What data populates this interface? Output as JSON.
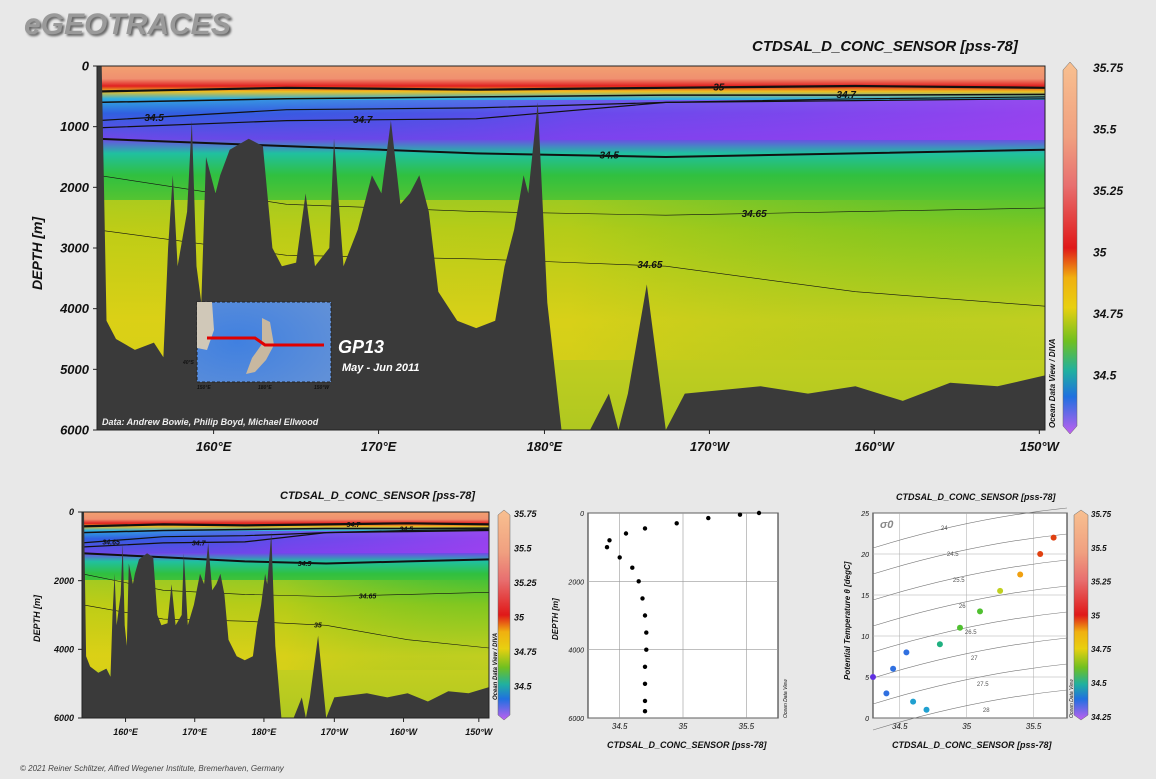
{
  "brand": "eGEOTRACES",
  "copyright": "© 2021 Reiner Schlitzer, Alfred Wegener Institute, Bremerhaven, Germany",
  "colors": {
    "bottom": "#3a3a3a",
    "background": "#e8e8e8"
  },
  "chart_data": [
    {
      "type": "heatmap",
      "title": "CTDSAL_D_CONC_SENSOR [pss-78]",
      "ylabel": "DEPTH [m]",
      "xlabel": "",
      "x_ticks": [
        "160°E",
        "170°E",
        "180°E",
        "170°W",
        "160°W",
        "150°W"
      ],
      "y_ticks": [
        "0",
        "1000",
        "2000",
        "3000",
        "4000",
        "5000",
        "6000"
      ],
      "ylim": [
        6000,
        0
      ],
      "xlim_lon": [
        153,
        150.5
      ],
      "colorbar": {
        "ticks": [
          "35.75",
          "35.5",
          "35.25",
          "35",
          "34.75",
          "34.5"
        ],
        "range": [
          34.3,
          35.8
        ]
      },
      "contours": [
        "35",
        "34.5",
        "34.65",
        "34.7",
        "34.5",
        "34.65",
        "34.7"
      ],
      "credit": "Data: Andrew Bowie, Philip Boyd, Michael Ellwood",
      "section": "GP13",
      "period": "May - Jun 2011",
      "vertical_label": "Ocean Data View / DIVA",
      "inset_labels": [
        "40°S",
        "150°E",
        "180°E",
        "150°W"
      ]
    },
    {
      "type": "heatmap",
      "title": "CTDSAL_D_CONC_SENSOR [pss-78]",
      "ylabel": "DEPTH [m]",
      "x_ticks": [
        "160°E",
        "170°E",
        "180°E",
        "170°W",
        "160°W",
        "150°W"
      ],
      "y_ticks": [
        "0",
        "2000",
        "4000",
        "6000"
      ],
      "colorbar": {
        "ticks": [
          "35.75",
          "35.5",
          "35.25",
          "35",
          "34.75",
          "34.5"
        ]
      },
      "contours": [
        "34.7",
        "34.65",
        "35",
        "34.5",
        "34.5",
        "34.65",
        "34.7"
      ],
      "vertical_label": "Ocean Data View / DIVA"
    },
    {
      "type": "scatter",
      "xlabel": "CTDSAL_D_CONC_SENSOR [pss-78]",
      "ylabel": "DEPTH [m]",
      "x_ticks": [
        "34.5",
        "35",
        "35.5"
      ],
      "y_ticks": [
        "0",
        "2000",
        "4000",
        "6000"
      ],
      "xlim": [
        34.25,
        35.75
      ],
      "ylim": [
        6000,
        0
      ],
      "vertical_label": "Ocean Data View",
      "profile": [
        {
          "depth": 0,
          "sal": 35.6
        },
        {
          "depth": 50,
          "sal": 35.45
        },
        {
          "depth": 150,
          "sal": 35.2
        },
        {
          "depth": 300,
          "sal": 34.95
        },
        {
          "depth": 450,
          "sal": 34.7
        },
        {
          "depth": 600,
          "sal": 34.55
        },
        {
          "depth": 800,
          "sal": 34.42
        },
        {
          "depth": 1000,
          "sal": 34.4
        },
        {
          "depth": 1300,
          "sal": 34.5
        },
        {
          "depth": 1600,
          "sal": 34.6
        },
        {
          "depth": 2000,
          "sal": 34.65
        },
        {
          "depth": 2500,
          "sal": 34.68
        },
        {
          "depth": 3000,
          "sal": 34.7
        },
        {
          "depth": 3500,
          "sal": 34.71
        },
        {
          "depth": 4000,
          "sal": 34.71
        },
        {
          "depth": 4500,
          "sal": 34.7
        },
        {
          "depth": 5000,
          "sal": 34.7
        },
        {
          "depth": 5500,
          "sal": 34.7
        },
        {
          "depth": 5800,
          "sal": 34.7
        }
      ]
    },
    {
      "type": "scatter",
      "title": "CTDSAL_D_CONC_SENSOR [pss-78]",
      "xlabel": "CTDSAL_D_CONC_SENSOR [pss-78]",
      "ylabel": "Potential Temperature θ [degC]",
      "x_ticks": [
        "34.5",
        "35",
        "35.5"
      ],
      "y_ticks": [
        "0",
        "5",
        "10",
        "15",
        "20",
        "25"
      ],
      "xlim": [
        34.3,
        35.75
      ],
      "ylim": [
        0,
        25
      ],
      "isopycnal_symbol": "σ0",
      "isopycnals": [
        "24",
        "24.5",
        "25.5",
        "26",
        "26.5",
        "27",
        "27.5",
        "28"
      ],
      "colorbar": {
        "ticks": [
          "35.75",
          "35.5",
          "35.25",
          "35",
          "34.75",
          "34.5",
          "34.25"
        ]
      },
      "vertical_label": "Ocean Data View",
      "ts_curve": [
        {
          "sal": 34.3,
          "theta": 5
        },
        {
          "sal": 34.45,
          "theta": 6
        },
        {
          "sal": 34.55,
          "theta": 8
        },
        {
          "sal": 34.4,
          "theta": 3
        },
        {
          "sal": 34.6,
          "theta": 2
        },
        {
          "sal": 34.7,
          "theta": 1
        },
        {
          "sal": 34.8,
          "theta": 9
        },
        {
          "sal": 34.95,
          "theta": 11
        },
        {
          "sal": 35.1,
          "theta": 13
        },
        {
          "sal": 35.25,
          "theta": 15.5
        },
        {
          "sal": 35.4,
          "theta": 17.5
        },
        {
          "sal": 35.55,
          "theta": 20
        },
        {
          "sal": 35.65,
          "theta": 22
        }
      ]
    }
  ]
}
